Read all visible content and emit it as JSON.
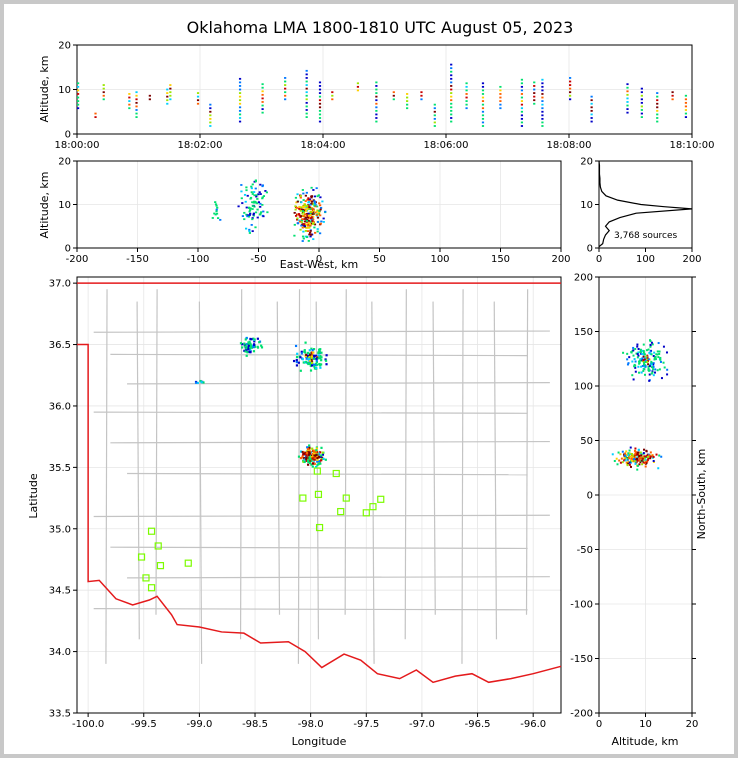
{
  "chart_data": {
    "type": "scatter",
    "title": "Oklahoma LMA 1800-1810 UTC August 05, 2023",
    "source_count_label": "3,768 sources",
    "colormap": [
      "#0000c8",
      "#0078ff",
      "#00d0ff",
      "#00e070",
      "#9be600",
      "#ffd000",
      "#ff6000",
      "#c80000",
      "#7a0000"
    ],
    "station_color": "#7cfc00",
    "border_color": "#e41a1c",
    "county_color": "#c4c4c4",
    "panels": {
      "time_alt": {
        "ylabel": "Altitude, km",
        "xlim": [
          "18:00:00",
          "18:10:00"
        ],
        "ylim": [
          0,
          20
        ],
        "xticks": [
          "18:00:00",
          "18:02:00",
          "18:04:00",
          "18:06:00",
          "18:08:00",
          "18:10:00"
        ],
        "yticks": [
          0,
          10,
          20
        ],
        "columns": [
          {
            "t": "18:00:00",
            "alt": [
              6,
              12
            ]
          },
          {
            "t": "18:00:17",
            "alt": [
              4,
              5
            ]
          },
          {
            "t": "18:00:25",
            "alt": [
              8,
              12
            ]
          },
          {
            "t": "18:00:50",
            "alt": [
              6,
              10
            ]
          },
          {
            "t": "18:00:57",
            "alt": [
              4,
              10
            ]
          },
          {
            "t": "18:01:10",
            "alt": [
              8,
              9
            ]
          },
          {
            "t": "18:01:27",
            "alt": [
              7,
              11
            ]
          },
          {
            "t": "18:01:30",
            "alt": [
              8,
              12
            ]
          },
          {
            "t": "18:01:57",
            "alt": [
              7,
              10
            ]
          },
          {
            "t": "18:02:09",
            "alt": [
              2,
              7
            ]
          },
          {
            "t": "18:02:38",
            "alt": [
              3,
              13
            ]
          },
          {
            "t": "18:03:00",
            "alt": [
              5,
              12
            ]
          },
          {
            "t": "18:03:22",
            "alt": [
              8,
              13
            ]
          },
          {
            "t": "18:03:43",
            "alt": [
              4,
              15
            ]
          },
          {
            "t": "18:03:56",
            "alt": [
              3,
              12
            ]
          },
          {
            "t": "18:04:08",
            "alt": [
              8,
              10
            ]
          },
          {
            "t": "18:04:33",
            "alt": [
              10,
              12
            ]
          },
          {
            "t": "18:04:51",
            "alt": [
              3,
              12
            ]
          },
          {
            "t": "18:05:08",
            "alt": [
              8,
              10
            ]
          },
          {
            "t": "18:05:21",
            "alt": [
              6,
              10
            ]
          },
          {
            "t": "18:05:35",
            "alt": [
              8,
              10
            ]
          },
          {
            "t": "18:05:48",
            "alt": [
              2,
              7
            ]
          },
          {
            "t": "18:06:04",
            "alt": [
              3,
              16
            ]
          },
          {
            "t": "18:06:19",
            "alt": [
              6,
              12
            ]
          },
          {
            "t": "18:06:35",
            "alt": [
              2,
              12
            ]
          },
          {
            "t": "18:06:52",
            "alt": [
              6,
              11
            ]
          },
          {
            "t": "18:07:13",
            "alt": [
              2,
              13
            ]
          },
          {
            "t": "18:07:25",
            "alt": [
              7,
              12
            ]
          },
          {
            "t": "18:07:33",
            "alt": [
              2,
              13
            ]
          },
          {
            "t": "18:08:00",
            "alt": [
              8,
              13
            ]
          },
          {
            "t": "18:08:21",
            "alt": [
              3,
              9
            ]
          },
          {
            "t": "18:08:56",
            "alt": [
              5,
              12
            ]
          },
          {
            "t": "18:09:10",
            "alt": [
              4,
              11
            ]
          },
          {
            "t": "18:09:25",
            "alt": [
              3,
              10
            ]
          },
          {
            "t": "18:09:53",
            "alt": [
              4,
              9
            ]
          },
          {
            "t": "18:09:40",
            "alt": [
              8,
              10
            ]
          }
        ]
      },
      "ew_alt": {
        "xlabel": "East-West, km",
        "ylabel": "Altitude, km",
        "xlim": [
          -200,
          200
        ],
        "ylim": [
          0,
          20
        ],
        "xticks": [
          -200,
          -150,
          -100,
          -50,
          0,
          50,
          100,
          150,
          200
        ],
        "yticks": [
          0,
          10,
          20
        ],
        "clusters": [
          {
            "x": -55,
            "y": 10,
            "sx": 6,
            "sy": 3,
            "n": 90,
            "heat": 0.25
          },
          {
            "x": -10,
            "y": 8,
            "sx": 7,
            "sy": 3,
            "n": 260,
            "heat": 0.7
          },
          {
            "x": -85,
            "y": 9,
            "sx": 2,
            "sy": 2,
            "n": 12,
            "heat": 0.1
          }
        ]
      },
      "alt_hist": {
        "xlim": [
          0,
          200
        ],
        "ylim": [
          0,
          20
        ],
        "xticks": [
          0,
          100,
          200
        ],
        "yticks": [
          0,
          10,
          20
        ],
        "profile": [
          [
            0,
            0.3
          ],
          [
            8,
            1
          ],
          [
            10,
            2
          ],
          [
            14,
            3
          ],
          [
            22,
            4
          ],
          [
            14,
            5
          ],
          [
            22,
            6
          ],
          [
            45,
            7
          ],
          [
            80,
            8
          ],
          [
            200,
            9
          ],
          [
            140,
            9.5
          ],
          [
            90,
            10
          ],
          [
            40,
            11
          ],
          [
            15,
            12
          ],
          [
            6,
            13
          ],
          [
            3,
            14
          ],
          [
            2,
            15
          ],
          [
            2,
            16
          ],
          [
            1,
            17
          ],
          [
            1,
            18
          ],
          [
            1,
            19
          ],
          [
            0,
            20
          ]
        ]
      },
      "map": {
        "xlabel": "Longitude",
        "ylabel": "Latitude",
        "xlim": [
          -100.1,
          -95.75
        ],
        "ylim": [
          33.5,
          37.05
        ],
        "xticks": [
          -100,
          -99.5,
          -99,
          -98.5,
          -98,
          -97.5,
          -97,
          -96.5,
          -96
        ],
        "xtick_labels": [
          "-100.0",
          "-99.5",
          "-99.0",
          "-98.5",
          "-98.0",
          "-97.5",
          "-97.0",
          "-96.5",
          "-96.0"
        ],
        "yticks": [
          33.5,
          34,
          34.5,
          35,
          35.5,
          36,
          36.5,
          37
        ],
        "ytick_labels": [
          "33.5",
          "34.0",
          "34.5",
          "35.0",
          "35.5",
          "36.0",
          "36.5",
          "37.0"
        ],
        "clusters": [
          {
            "x": -98.55,
            "y": 36.5,
            "sx": 0.05,
            "sy": 0.04,
            "n": 70,
            "heat": 0.2
          },
          {
            "x": -98.0,
            "y": 36.4,
            "sx": 0.08,
            "sy": 0.06,
            "n": 120,
            "heat": 0.35
          },
          {
            "x": -98.0,
            "y": 35.6,
            "sx": 0.06,
            "sy": 0.04,
            "n": 180,
            "heat": 0.8
          },
          {
            "x": -99.0,
            "y": 36.2,
            "sx": 0.03,
            "sy": 0.01,
            "n": 8,
            "heat": 0.1
          }
        ],
        "stations": [
          [
            -97.94,
            35.47
          ],
          [
            -97.77,
            35.45
          ],
          [
            -97.93,
            35.28
          ],
          [
            -98.07,
            35.25
          ],
          [
            -97.68,
            35.25
          ],
          [
            -97.37,
            35.24
          ],
          [
            -97.44,
            35.18
          ],
          [
            -97.73,
            35.14
          ],
          [
            -97.5,
            35.13
          ],
          [
            -97.92,
            35.01
          ],
          [
            -99.43,
            34.98
          ],
          [
            -99.37,
            34.86
          ],
          [
            -99.52,
            34.77
          ],
          [
            -99.35,
            34.7
          ],
          [
            -99.1,
            34.72
          ],
          [
            -99.48,
            34.6
          ],
          [
            -99.43,
            34.52
          ]
        ]
      },
      "ns_alt": {
        "xlabel": "Altitude, km",
        "ylabel": "North-South, km",
        "xlim": [
          0,
          20
        ],
        "ylim": [
          -200,
          200
        ],
        "xticks": [
          0,
          10,
          20
        ],
        "yticks": [
          -200,
          -150,
          -100,
          -50,
          0,
          50,
          100,
          150,
          200
        ],
        "clusters": [
          {
            "x": 10,
            "y": 125,
            "sx": 2.5,
            "sy": 10,
            "n": 160,
            "heat": 0.3
          },
          {
            "x": 8,
            "y": 35,
            "sx": 2.5,
            "sy": 5,
            "n": 180,
            "heat": 0.8
          }
        ]
      }
    }
  }
}
